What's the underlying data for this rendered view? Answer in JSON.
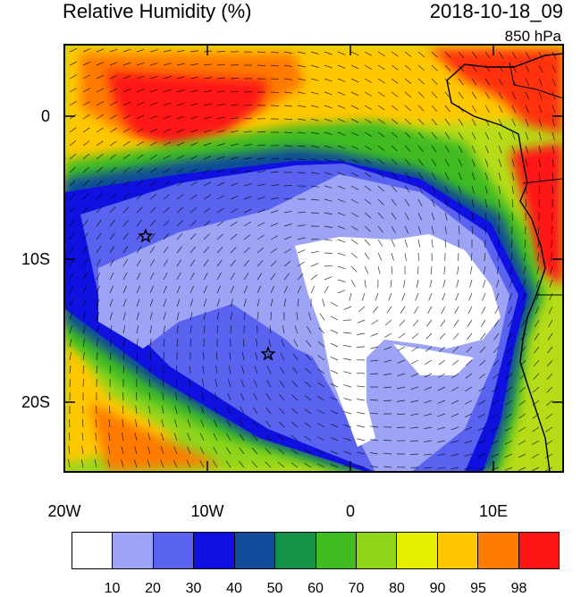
{
  "header": {
    "title": "Relative Humidity (%)",
    "datetime": "2018-10-18_09",
    "level": "850 hPa"
  },
  "axes": {
    "y_ticks": [
      "0",
      "10S",
      "20S"
    ],
    "x_ticks": [
      "20W",
      "10W",
      "0",
      "10E"
    ],
    "lon_range": [
      -20,
      15
    ],
    "lat_range": [
      -24,
      5
    ]
  },
  "markers": [
    {
      "name": "star-marker-1",
      "lon": -14.3,
      "lat": -8.0
    },
    {
      "name": "star-marker-2",
      "lon": -5.7,
      "lat": -16.0
    }
  ],
  "colorbar": {
    "colors": [
      "#ffffff",
      "#9ea4f5",
      "#5a62f0",
      "#1010e0",
      "#114b9a",
      "#149248",
      "#3fbc20",
      "#8fd51a",
      "#e6ef00",
      "#ffc800",
      "#ff7a00",
      "#ff1414"
    ],
    "labels": [
      "10",
      "20",
      "30",
      "40",
      "50",
      "60",
      "70",
      "80",
      "90",
      "95",
      "98"
    ]
  }
}
